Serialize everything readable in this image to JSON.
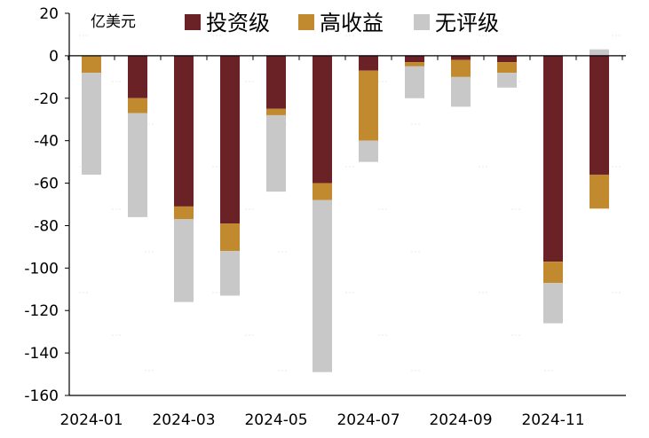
{
  "chart_data": {
    "type": "bar",
    "stacked": true,
    "unit_label": "亿美元",
    "categories": [
      "2024-01",
      "2024-02",
      "2024-03",
      "2024-04",
      "2024-05",
      "2024-06",
      "2024-07",
      "2024-08",
      "2024-09",
      "2024-10",
      "2024-11",
      "2024-12"
    ],
    "x_tick_labels": [
      "2024-01",
      "2024-03",
      "2024-05",
      "2024-07",
      "2024-09",
      "2024-11"
    ],
    "ylim": [
      -160,
      20
    ],
    "y_ticks": [
      20,
      0,
      -20,
      -40,
      -60,
      -80,
      -100,
      -120,
      -140,
      -160
    ],
    "legend_position": "top",
    "grid": false,
    "series": [
      {
        "name": "投资级",
        "color": "#6b2226",
        "values": [
          0,
          -20,
          -71,
          -79,
          -25,
          -60,
          -7,
          -3,
          -2,
          -3,
          -97,
          -56
        ]
      },
      {
        "name": "高收益",
        "color": "#c18a2e",
        "values": [
          -8,
          -7,
          -6,
          -13,
          -3,
          -8,
          -33,
          -2,
          -8,
          -5,
          -10,
          -16
        ]
      },
      {
        "name": "无评级",
        "color": "#c8c8c8",
        "values": [
          -48,
          -49,
          -39,
          -21,
          -36,
          -81,
          -10,
          -15,
          -14,
          -7,
          -19,
          3
        ]
      }
    ]
  }
}
